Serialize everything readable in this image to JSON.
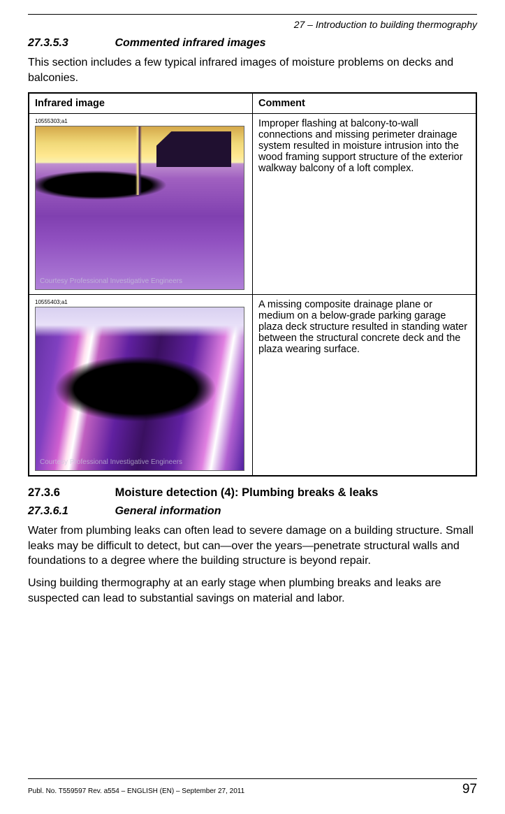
{
  "header": {
    "running": "27 – Introduction to building thermography"
  },
  "section_a": {
    "num": "27.3.5.3",
    "title": "Commented infrared images",
    "intro": "This section includes a few typical infrared images of moisture problems on decks and balconies."
  },
  "table": {
    "col1": "Infrared image",
    "col2": "Comment",
    "rows": [
      {
        "img_id": "10555303;a1",
        "credit": "Courtesy Professional Investigative Engineers",
        "comment": "Improper flashing at balcony-to-wall connections and missing perimeter drainage system resulted in moisture intrusion into the wood framing support structure of the exterior walkway balcony of a loft complex."
      },
      {
        "img_id": "10555403;a1",
        "credit": "Courtesy Professional Investigative Engineers",
        "comment": "A missing composite drainage plane or medium on a below-grade parking garage plaza deck structure resulted in standing water between the structural concrete deck and the plaza wearing surface."
      }
    ]
  },
  "section_b": {
    "num": "27.3.6",
    "title": "Moisture detection (4): Plumbing breaks & leaks"
  },
  "section_c": {
    "num": "27.3.6.1",
    "title": "General information",
    "p1": "Water from plumbing leaks can often lead to severe damage on a building structure. Small leaks may be difficult to detect, but can—over the years—penetrate structural walls and foundations to a degree where the building structure is beyond repair.",
    "p2": "Using building thermography at an early stage when plumbing breaks and leaks are suspected can lead to substantial savings on material and labor."
  },
  "footer": {
    "pub": "Publ. No. T559597 Rev. a554 – ENGLISH (EN) – September 27, 2011",
    "page": "97"
  }
}
